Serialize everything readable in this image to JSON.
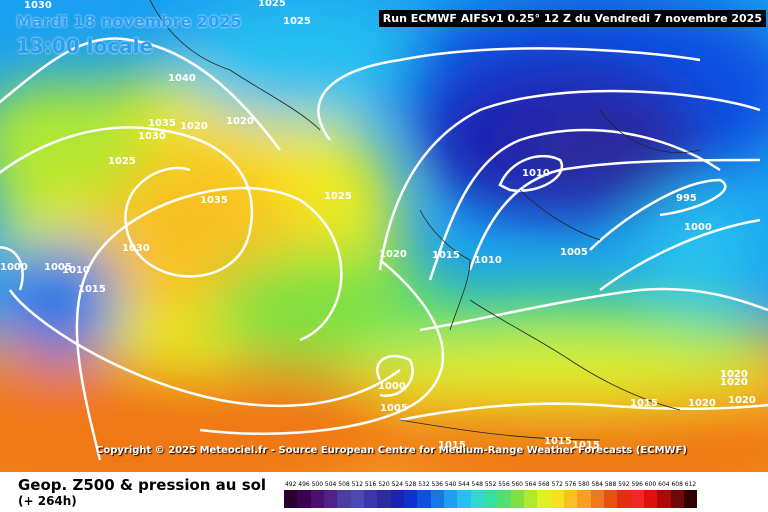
{
  "header": {
    "date": "Mardi 18 novembre 2025",
    "time": "13:00 locale",
    "run": "Run ECMWF AIFSv1 0.25° 12 Z du Vendredi 7 novembre 2025"
  },
  "copyright": "Copyright © 2025 Meteociel.fr - Source European Centre for Medium-Range Weather Forecasts (ECMWF)",
  "footer": {
    "title": "Geop. Z500 & pression au sol",
    "subtitle": "(+ 264h)"
  },
  "isobar_labels": [
    "1030",
    "1025",
    "1025",
    "1040",
    "1035",
    "1030",
    "1020",
    "1020",
    "1025",
    "1035",
    "1030",
    "1025",
    "1000",
    "1005",
    "1010",
    "1015",
    "1020",
    "1015",
    "1010",
    "1010",
    "1005",
    "995",
    "1000",
    "1000",
    "1005",
    "1015",
    "1015",
    "1015",
    "1015",
    "1020",
    "1020",
    "1020",
    "1020"
  ],
  "scale": [
    {
      "label": "492",
      "color": "#2a0033"
    },
    {
      "label": "496",
      "color": "#3b0050"
    },
    {
      "label": "500",
      "color": "#4a1070"
    },
    {
      "label": "504",
      "color": "#52208a"
    },
    {
      "label": "508",
      "color": "#4e3da0"
    },
    {
      "label": "512",
      "color": "#4a4ab0"
    },
    {
      "label": "516",
      "color": "#3a38a8"
    },
    {
      "label": "520",
      "color": "#2c2c9e"
    },
    {
      "label": "524",
      "color": "#1b22b4"
    },
    {
      "label": "528",
      "color": "#1030d0"
    },
    {
      "label": "532",
      "color": "#1050e0"
    },
    {
      "label": "536",
      "color": "#1478e8"
    },
    {
      "label": "540",
      "color": "#1ea0f0"
    },
    {
      "label": "544",
      "color": "#28c0f0"
    },
    {
      "label": "548",
      "color": "#30d8d0"
    },
    {
      "label": "552",
      "color": "#38e0a0"
    },
    {
      "label": "556",
      "color": "#50e070"
    },
    {
      "label": "560",
      "color": "#80e040"
    },
    {
      "label": "564",
      "color": "#b0e830"
    },
    {
      "label": "568",
      "color": "#e0f028"
    },
    {
      "label": "572",
      "color": "#f8e020"
    },
    {
      "label": "576",
      "color": "#f8c020"
    },
    {
      "label": "580",
      "color": "#f8a020"
    },
    {
      "label": "584",
      "color": "#f07818"
    },
    {
      "label": "588",
      "color": "#e85010"
    },
    {
      "label": "592",
      "color": "#e03010"
    },
    {
      "label": "596",
      "color": "#f02828"
    },
    {
      "label": "600",
      "color": "#e01010"
    },
    {
      "label": "604",
      "color": "#b00808"
    },
    {
      "label": "608",
      "color": "#700808"
    },
    {
      "label": "612",
      "color": "#300000"
    }
  ]
}
